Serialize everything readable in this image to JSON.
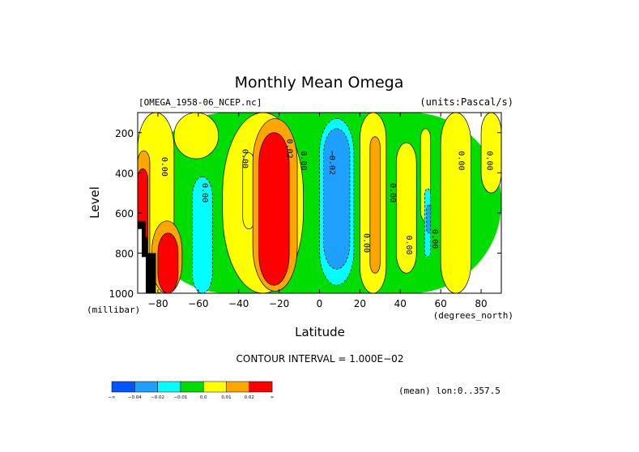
{
  "chart_data": {
    "type": "heatmap",
    "title": "Monthly Mean Omega",
    "file_label": "[OMEGA_1958-06_NCEP.nc]",
    "units_label": "(units:Pascal/s)",
    "xlabel": "Latitude",
    "x_unit_label": "(degrees_north)",
    "ylabel": "Level",
    "y_unit_label": "(millibar)",
    "xlim": [
      -90,
      90
    ],
    "ylim": [
      1000,
      100
    ],
    "x_ticks": [
      -80,
      -60,
      -40,
      -20,
      0,
      20,
      40,
      60,
      80
    ],
    "x_tick_labels": [
      "−80",
      "−60",
      "−40",
      "−20",
      "0",
      "20",
      "40",
      "60",
      "80"
    ],
    "y_ticks": [
      200,
      400,
      600,
      800,
      1000
    ],
    "y_tick_labels": [
      "200",
      "400",
      "600",
      "800",
      "1000"
    ],
    "contour_interval_text": "CONTOUR INTERVAL = 1.000E−02",
    "mean_note": "(mean) lon:0..357.5",
    "contour_labels": [
      {
        "text": "0.00",
        "lat": -78,
        "lev": 370
      },
      {
        "text": "0.00",
        "lat": -58,
        "lev": 500
      },
      {
        "text": "0.00",
        "lat": -38,
        "lev": 330
      },
      {
        "text": "0.02",
        "lat": -16,
        "lev": 280
      },
      {
        "text": "0.00",
        "lat": -9,
        "lev": 340
      },
      {
        "text": "−0.02",
        "lat": 5,
        "lev": 350
      },
      {
        "text": "0.00",
        "lat": 22,
        "lev": 750
      },
      {
        "text": "0.00",
        "lat": 35,
        "lev": 500
      },
      {
        "text": "0.00",
        "lat": 43,
        "lev": 760
      },
      {
        "text": "0.00",
        "lat": 56,
        "lev": 730
      },
      {
        "text": "0.00",
        "lat": 69,
        "lev": 340
      },
      {
        "text": "0.00",
        "lat": 83,
        "lev": 340
      }
    ],
    "regions": [
      {
        "color": "#00dd00",
        "lat0": -90,
        "lat1": 90,
        "lev0": 100,
        "lev1": 1000
      },
      {
        "color": "#ffff00",
        "lat0": -90,
        "lat1": -72,
        "lev0": 100,
        "lev1": 1000
      },
      {
        "color": "#ffff00",
        "lat0": -72,
        "lat1": -50,
        "lev0": 100,
        "lev1": 330
      },
      {
        "color": "#ffff00",
        "lat0": -48,
        "lat1": -8,
        "lev0": 100,
        "lev1": 1000
      },
      {
        "color": "#ffff00",
        "lat0": -38,
        "lat1": -32,
        "lev0": 300,
        "lev1": 680
      },
      {
        "color": "#ffff00",
        "lat0": 20,
        "lat1": 33,
        "lev0": 100,
        "lev1": 1000
      },
      {
        "color": "#ffff00",
        "lat0": 38,
        "lat1": 48,
        "lev0": 250,
        "lev1": 900
      },
      {
        "color": "#ffff00",
        "lat0": 50,
        "lat1": 55,
        "lev0": 180,
        "lev1": 640
      },
      {
        "color": "#ffff00",
        "lat0": 60,
        "lat1": 75,
        "lev0": 100,
        "lev1": 1000
      },
      {
        "color": "#ffff00",
        "lat0": 80,
        "lat1": 90,
        "lev0": 100,
        "lev1": 500
      },
      {
        "color": "#ffa500",
        "lat0": -90,
        "lat1": -84,
        "lev0": 290,
        "lev1": 1000
      },
      {
        "color": "#ffa500",
        "lat0": -83,
        "lat1": -68,
        "lev0": 640,
        "lev1": 1000
      },
      {
        "color": "#ffa500",
        "lat0": -33,
        "lat1": -11,
        "lev0": 130,
        "lev1": 990
      },
      {
        "color": "#ffa500",
        "lat0": 25,
        "lat1": 30,
        "lev0": 220,
        "lev1": 900
      },
      {
        "color": "#ff0000",
        "lat0": -90,
        "lat1": -85,
        "lev0": 380,
        "lev1": 1000
      },
      {
        "color": "#ff0000",
        "lat0": -80,
        "lat1": -70,
        "lev0": 700,
        "lev1": 1000
      },
      {
        "color": "#ff0000",
        "lat0": -30,
        "lat1": -15,
        "lev0": 200,
        "lev1": 960
      },
      {
        "color": "#00ffff",
        "lat0": -63,
        "lat1": -53,
        "lev0": 420,
        "lev1": 1000
      },
      {
        "color": "#00ffff",
        "lat0": 0,
        "lat1": 17,
        "lev0": 130,
        "lev1": 960
      },
      {
        "color": "#00ffff",
        "lat0": 52,
        "lat1": 55,
        "lev0": 480,
        "lev1": 820
      },
      {
        "color": "#1ea0ff",
        "lat0": 2,
        "lat1": 15,
        "lev0": 180,
        "lev1": 880
      },
      {
        "color": "#1ea0ff",
        "lat0": 53,
        "lat1": 55,
        "lev0": 560,
        "lev1": 700
      },
      {
        "color": "#000000",
        "lat0": -90,
        "lat1": -86,
        "lev0": 640,
        "lev1": 720
      },
      {
        "color": "#000000",
        "lat0": -88,
        "lat1": -85,
        "lev0": 720,
        "lev1": 820
      },
      {
        "color": "#000000",
        "lat0": -86,
        "lat1": -81,
        "lev0": 800,
        "lev1": 1000
      }
    ],
    "white_regions": [
      {
        "lat0": -90,
        "lat1": -88,
        "lev0": 680,
        "lev1": 1000
      },
      {
        "lat0": -88,
        "lat1": -86,
        "lev0": 820,
        "lev1": 1000
      }
    ],
    "colorbar": {
      "colors": [
        "#0055ff",
        "#1ea0ff",
        "#00ffff",
        "#00dd00",
        "#ffff00",
        "#ffa500",
        "#ff0000"
      ],
      "labels": [
        "−∞",
        "−0.04",
        "−0.02",
        "−0.01",
        "0.0",
        "0.01",
        "0.02",
        "∞"
      ]
    }
  }
}
